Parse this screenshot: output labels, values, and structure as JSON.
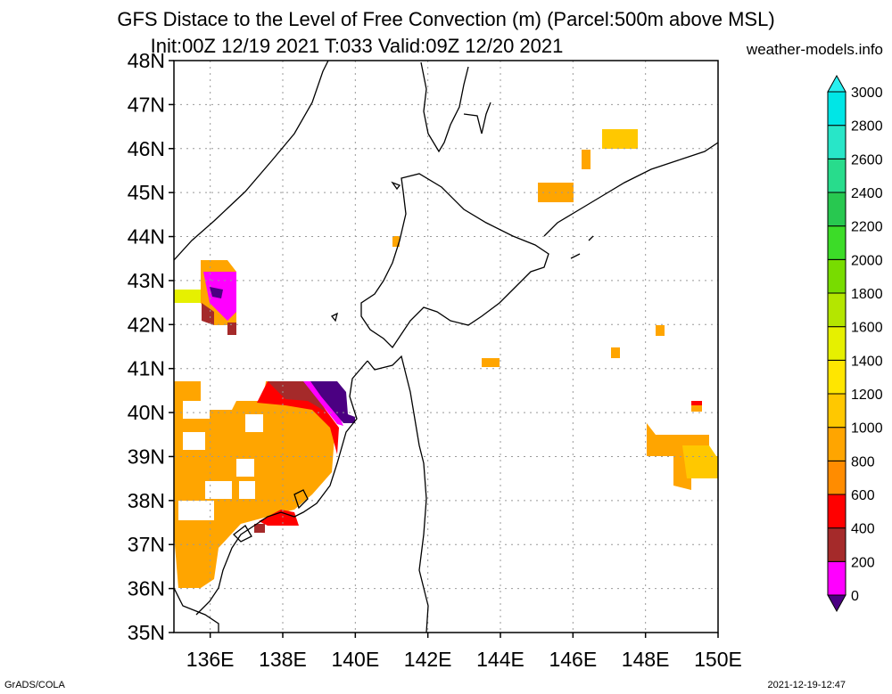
{
  "header": {
    "title_line1": "GFS Distace to the Level of Free Convection (m) (Parcel:500m above MSL)",
    "title_line2": "Init:00Z 12/19 2021 T:033 Valid:09Z 12/20 2021",
    "site": "weather-models.info"
  },
  "footer": {
    "left": "GrADS/COLA",
    "right": "2021-12-19-12:47"
  },
  "map": {
    "lon_range": [
      135,
      150
    ],
    "lat_range": [
      35,
      48
    ],
    "lat_labels": [
      "35N",
      "36N",
      "37N",
      "38N",
      "39N",
      "40N",
      "41N",
      "42N",
      "43N",
      "44N",
      "45N",
      "46N",
      "47N",
      "48N"
    ],
    "lon_labels": [
      "136E",
      "138E",
      "140E",
      "142E",
      "144E",
      "146E",
      "148E",
      "150E"
    ],
    "grid": "dotted"
  },
  "colorbar": {
    "levels": [
      "0",
      "200",
      "400",
      "600",
      "800",
      "1000",
      "1200",
      "1400",
      "1600",
      "1800",
      "2000",
      "2200",
      "2400",
      "2600",
      "2800",
      "3000"
    ],
    "colors": [
      "#4b0082",
      "#ff00ff",
      "#a52a2a",
      "#ff0000",
      "#ff8c00",
      "#ffa500",
      "#ffc800",
      "#ffe600",
      "#e6f000",
      "#b4e600",
      "#78dc00",
      "#3cdc28",
      "#28c850",
      "#28dc8c",
      "#28e6c8",
      "#00e6e6",
      "#28f0f0"
    ]
  }
}
